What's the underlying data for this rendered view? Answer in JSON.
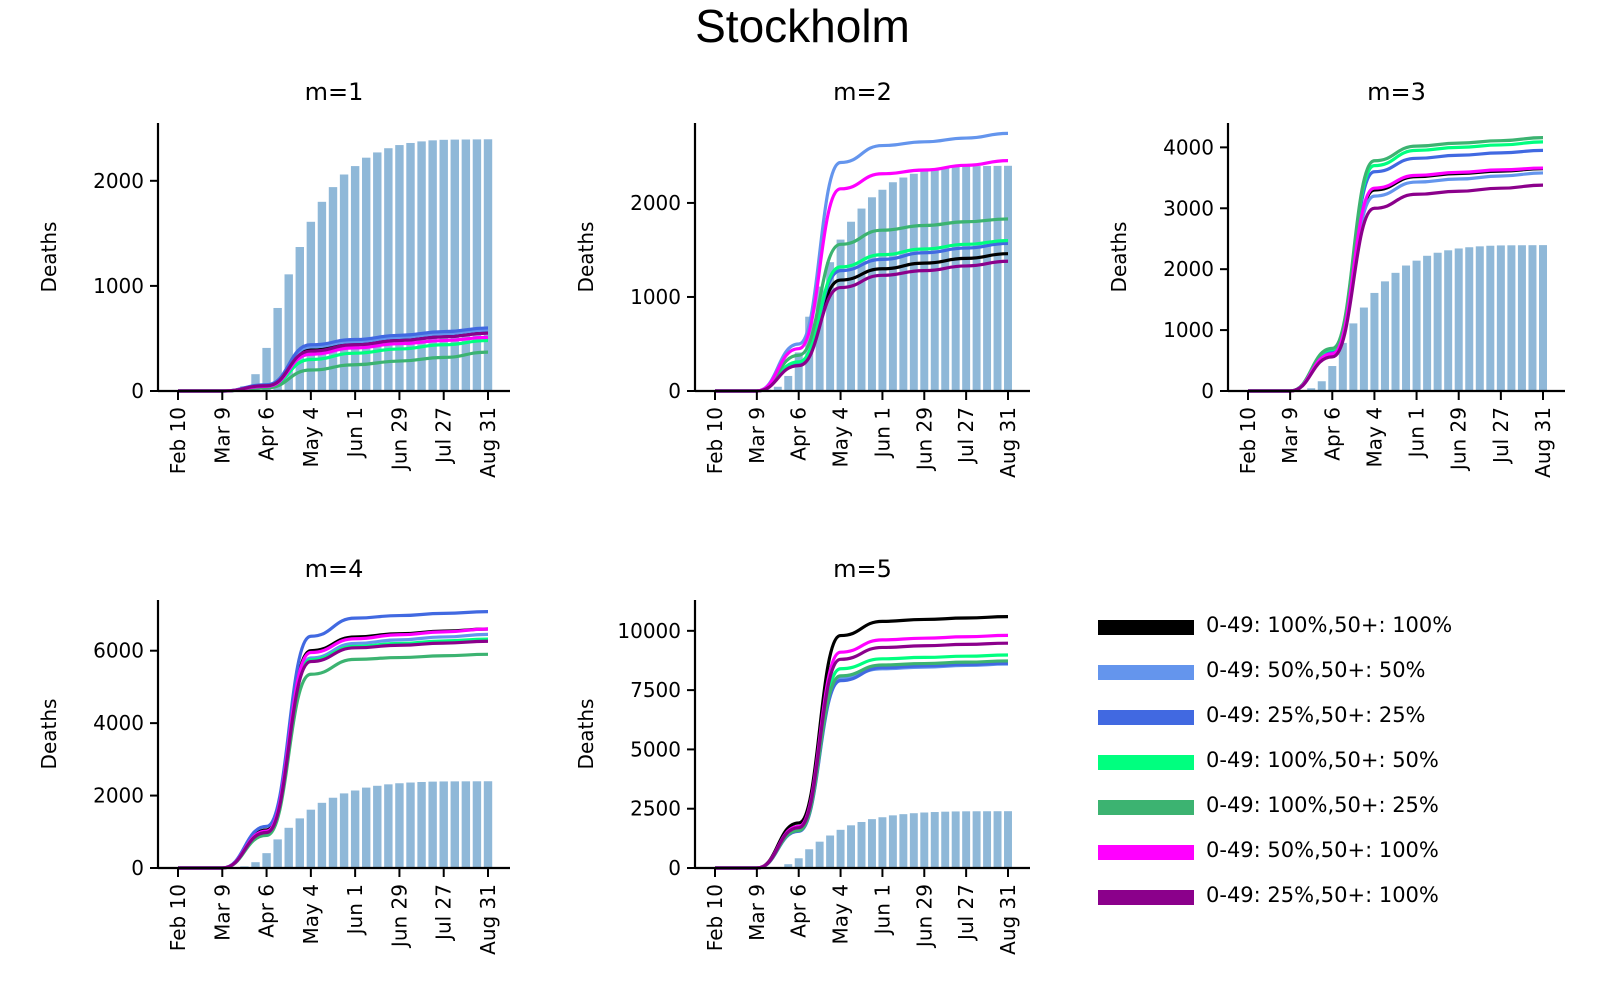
{
  "figure": {
    "title": "Stockholm"
  },
  "colors": {
    "bars": "#8fb8d8"
  },
  "dates": [
    "Feb 10",
    "Mar 9",
    "Apr 6",
    "May 4",
    "Jun 1",
    "Jun 29",
    "Jul 27",
    "Aug 31"
  ],
  "observed": [
    0,
    0,
    0,
    0,
    5,
    15,
    45,
    160,
    410,
    790,
    1110,
    1370,
    1610,
    1800,
    1940,
    2060,
    2140,
    2220,
    2270,
    2310,
    2340,
    2360,
    2375,
    2385,
    2390,
    2392,
    2393,
    2394,
    2395
  ],
  "legend": [
    {
      "label": "0-49: 100%,50+: 100%",
      "color": "#000000"
    },
    {
      "label": "0-49: 50%,50+: 50%",
      "color": "#6495ed"
    },
    {
      "label": "0-49: 25%,50+: 25%",
      "color": "#4169e1"
    },
    {
      "label": "0-49: 100%,50+: 50%",
      "color": "#00ff7f"
    },
    {
      "label": "0-49: 100%,50+: 25%",
      "color": "#3cb371"
    },
    {
      "label": "0-49: 50%,50+: 100%",
      "color": "#ff00ff"
    },
    {
      "label": "0-49: 25%,50+: 100%",
      "color": "#8b008b"
    }
  ],
  "chart_data": [
    {
      "type": "line",
      "title": "m=1",
      "ylabel": "Deaths",
      "ylim": [
        0,
        2550
      ],
      "yticks": [
        0,
        1000,
        2000
      ],
      "x": [
        "Feb 10",
        "Mar 9",
        "Apr 6",
        "May 4",
        "Jun 1",
        "Jun 29",
        "Jul 27",
        "Aug 31"
      ],
      "bar_label": "observed",
      "series": [
        {
          "color": "#000000",
          "values": [
            0,
            0,
            50,
            390,
            450,
            490,
            525,
            560
          ]
        },
        {
          "color": "#6495ed",
          "values": [
            0,
            0,
            55,
            420,
            470,
            510,
            545,
            580
          ]
        },
        {
          "color": "#4169e1",
          "values": [
            0,
            0,
            60,
            440,
            490,
            530,
            565,
            600
          ]
        },
        {
          "color": "#00ff7f",
          "values": [
            0,
            0,
            40,
            300,
            360,
            400,
            440,
            480
          ]
        },
        {
          "color": "#3cb371",
          "values": [
            0,
            0,
            30,
            200,
            250,
            285,
            320,
            370
          ]
        },
        {
          "color": "#ff00ff",
          "values": [
            0,
            0,
            45,
            350,
            410,
            450,
            480,
            510
          ]
        },
        {
          "color": "#8b008b",
          "values": [
            0,
            0,
            50,
            380,
            440,
            480,
            515,
            550
          ]
        }
      ]
    },
    {
      "type": "line",
      "title": "m=2",
      "ylabel": "Deaths",
      "ylim": [
        0,
        2850
      ],
      "yticks": [
        0,
        1000,
        2000
      ],
      "x": [
        "Feb 10",
        "Mar 9",
        "Apr 6",
        "May 4",
        "Jun 1",
        "Jun 29",
        "Jul 27",
        "Aug 31"
      ],
      "bar_label": "observed",
      "series": [
        {
          "color": "#000000",
          "values": [
            0,
            0,
            280,
            1180,
            1300,
            1360,
            1410,
            1460
          ]
        },
        {
          "color": "#6495ed",
          "values": [
            0,
            0,
            500,
            2430,
            2610,
            2650,
            2690,
            2740
          ]
        },
        {
          "color": "#4169e1",
          "values": [
            0,
            0,
            300,
            1280,
            1400,
            1470,
            1520,
            1570
          ]
        },
        {
          "color": "#00ff7f",
          "values": [
            0,
            0,
            310,
            1320,
            1450,
            1510,
            1560,
            1600
          ]
        },
        {
          "color": "#3cb371",
          "values": [
            0,
            0,
            380,
            1560,
            1710,
            1760,
            1800,
            1830
          ]
        },
        {
          "color": "#ff00ff",
          "values": [
            0,
            0,
            450,
            2150,
            2310,
            2350,
            2400,
            2450
          ]
        },
        {
          "color": "#8b008b",
          "values": [
            0,
            0,
            270,
            1100,
            1230,
            1280,
            1330,
            1380
          ]
        }
      ]
    },
    {
      "type": "line",
      "title": "m=3",
      "ylabel": "Deaths",
      "ylim": [
        0,
        4400
      ],
      "yticks": [
        0,
        1000,
        2000,
        3000,
        4000
      ],
      "x": [
        "Feb 10",
        "Mar 9",
        "Apr 6",
        "May 4",
        "Jun 1",
        "Jun 29",
        "Jul 27",
        "Aug 31"
      ],
      "bar_label": "observed",
      "series": [
        {
          "color": "#000000",
          "values": [
            0,
            0,
            600,
            3300,
            3520,
            3570,
            3610,
            3650
          ]
        },
        {
          "color": "#6495ed",
          "values": [
            0,
            0,
            580,
            3200,
            3430,
            3480,
            3530,
            3580
          ]
        },
        {
          "color": "#4169e1",
          "values": [
            0,
            0,
            650,
            3600,
            3820,
            3870,
            3910,
            3950
          ]
        },
        {
          "color": "#00ff7f",
          "values": [
            0,
            0,
            680,
            3700,
            3950,
            4000,
            4040,
            4090
          ]
        },
        {
          "color": "#3cb371",
          "values": [
            0,
            0,
            700,
            3780,
            4020,
            4070,
            4110,
            4160
          ]
        },
        {
          "color": "#ff00ff",
          "values": [
            0,
            0,
            610,
            3330,
            3540,
            3590,
            3630,
            3660
          ]
        },
        {
          "color": "#8b008b",
          "values": [
            0,
            0,
            560,
            3000,
            3230,
            3280,
            3330,
            3380
          ]
        }
      ]
    },
    {
      "type": "line",
      "title": "m=4",
      "ylabel": "Deaths",
      "ylim": [
        0,
        7400
      ],
      "yticks": [
        0,
        2000,
        4000,
        6000
      ],
      "x": [
        "Feb 10",
        "Mar 9",
        "Apr 6",
        "May 4",
        "Jun 1",
        "Jun 29",
        "Jul 27",
        "Aug 31"
      ],
      "bar_label": "observed",
      "series": [
        {
          "color": "#000000",
          "values": [
            0,
            0,
            1050,
            6000,
            6380,
            6470,
            6540,
            6600
          ]
        },
        {
          "color": "#6495ed",
          "values": [
            0,
            0,
            1000,
            5800,
            6200,
            6300,
            6380,
            6450
          ]
        },
        {
          "color": "#4169e1",
          "values": [
            0,
            0,
            1150,
            6400,
            6900,
            6970,
            7030,
            7080
          ]
        },
        {
          "color": "#00ff7f",
          "values": [
            0,
            0,
            990,
            5750,
            6120,
            6200,
            6270,
            6320
          ]
        },
        {
          "color": "#3cb371",
          "values": [
            0,
            0,
            900,
            5350,
            5760,
            5810,
            5860,
            5900
          ]
        },
        {
          "color": "#ff00ff",
          "values": [
            0,
            0,
            1020,
            5950,
            6330,
            6440,
            6520,
            6600
          ]
        },
        {
          "color": "#8b008b",
          "values": [
            0,
            0,
            980,
            5700,
            6080,
            6150,
            6210,
            6260
          ]
        }
      ]
    },
    {
      "type": "line",
      "title": "m=5",
      "ylabel": "Deaths",
      "ylim": [
        0,
        11300
      ],
      "yticks": [
        0,
        2500,
        5000,
        7500,
        10000
      ],
      "x": [
        "Feb 10",
        "Mar 9",
        "Apr 6",
        "May 4",
        "Jun 1",
        "Jun 29",
        "Jul 27",
        "Aug 31"
      ],
      "bar_label": "observed",
      "series": [
        {
          "color": "#000000",
          "values": [
            0,
            0,
            1900,
            9800,
            10400,
            10480,
            10540,
            10600
          ]
        },
        {
          "color": "#6495ed",
          "values": [
            0,
            0,
            1600,
            8000,
            8400,
            8470,
            8540,
            8600
          ]
        },
        {
          "color": "#4169e1",
          "values": [
            0,
            0,
            1550,
            7900,
            8450,
            8520,
            8580,
            8630
          ]
        },
        {
          "color": "#00ff7f",
          "values": [
            0,
            0,
            1650,
            8400,
            8820,
            8880,
            8930,
            8980
          ]
        },
        {
          "color": "#3cb371",
          "values": [
            0,
            0,
            1580,
            8100,
            8560,
            8620,
            8680,
            8730
          ]
        },
        {
          "color": "#ff00ff",
          "values": [
            0,
            0,
            1750,
            9100,
            9620,
            9690,
            9750,
            9810
          ]
        },
        {
          "color": "#8b008b",
          "values": [
            0,
            0,
            1700,
            8800,
            9300,
            9370,
            9430,
            9480
          ]
        }
      ]
    }
  ]
}
